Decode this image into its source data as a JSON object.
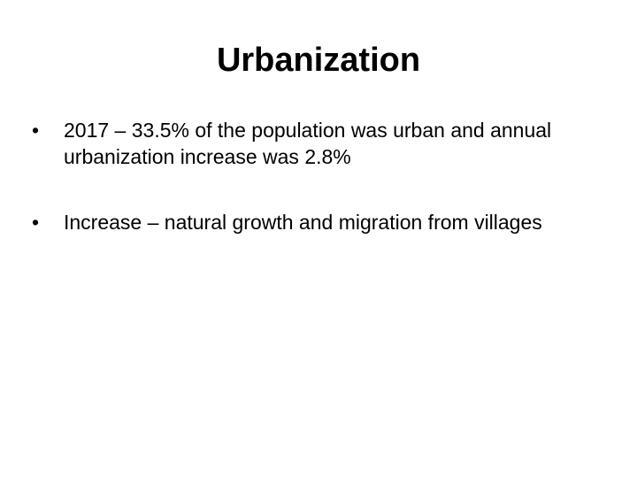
{
  "slide": {
    "title": "Urbanization",
    "bullets": [
      {
        "marker": "•",
        "text": "2017 – 33.5% of the population was urban and annual urbanization increase was 2.8%"
      },
      {
        "marker": "•",
        "text": "Increase – natural growth and migration from villages"
      }
    ]
  }
}
